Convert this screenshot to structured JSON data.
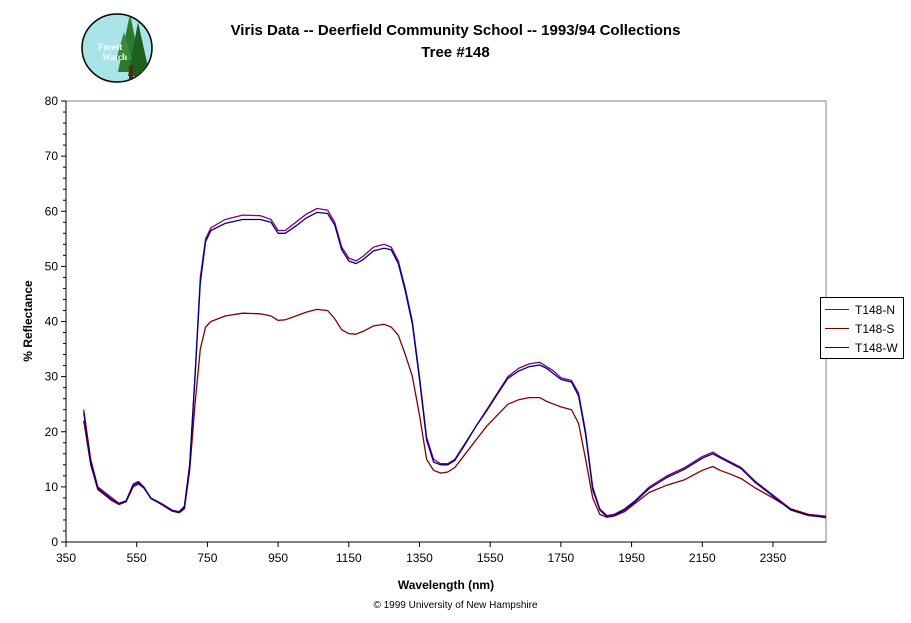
{
  "logo": {
    "text_line1": "Forest",
    "text_line2": "Watch",
    "icon": "forest-watch-logo"
  },
  "footer": {
    "copyright": "© 1999 University of New Hampshire"
  },
  "chart_data": {
    "type": "line",
    "title": "Viris Data -- Deerfield Community School -- 1993/94 Collections",
    "subtitle": "Tree #148",
    "xlabel": "Wavelength (nm)",
    "ylabel": "% Reflectance",
    "xlim": [
      350,
      2500
    ],
    "ylim": [
      0,
      80
    ],
    "xticks": [
      350,
      550,
      750,
      950,
      1150,
      1350,
      1550,
      1750,
      1950,
      2150,
      2350
    ],
    "yticks": [
      0,
      10,
      20,
      30,
      40,
      50,
      60,
      70,
      80
    ],
    "grid": false,
    "legend_position": "right",
    "series": [
      {
        "name": "T148-N",
        "color": "#800080",
        "points": [
          [
            400,
            24
          ],
          [
            420,
            15
          ],
          [
            440,
            10
          ],
          [
            460,
            9
          ],
          [
            480,
            8
          ],
          [
            500,
            7
          ],
          [
            520,
            7.5
          ],
          [
            540,
            10.5
          ],
          [
            555,
            11
          ],
          [
            570,
            10
          ],
          [
            590,
            8
          ],
          [
            620,
            7
          ],
          [
            650,
            5.8
          ],
          [
            670,
            5.5
          ],
          [
            685,
            6.5
          ],
          [
            700,
            14
          ],
          [
            715,
            30
          ],
          [
            730,
            48
          ],
          [
            745,
            55
          ],
          [
            760,
            57
          ],
          [
            800,
            58.5
          ],
          [
            850,
            59.3
          ],
          [
            900,
            59.2
          ],
          [
            930,
            58.5
          ],
          [
            950,
            56.5
          ],
          [
            970,
            56.5
          ],
          [
            1000,
            58
          ],
          [
            1030,
            59.5
          ],
          [
            1060,
            60.5
          ],
          [
            1090,
            60.2
          ],
          [
            1110,
            58
          ],
          [
            1130,
            53.5
          ],
          [
            1150,
            51.5
          ],
          [
            1170,
            51
          ],
          [
            1190,
            51.8
          ],
          [
            1220,
            53.5
          ],
          [
            1250,
            54
          ],
          [
            1270,
            53.5
          ],
          [
            1290,
            51
          ],
          [
            1310,
            46
          ],
          [
            1330,
            40
          ],
          [
            1350,
            30
          ],
          [
            1370,
            19
          ],
          [
            1390,
            15
          ],
          [
            1410,
            14.2
          ],
          [
            1430,
            14.2
          ],
          [
            1450,
            15
          ],
          [
            1480,
            18
          ],
          [
            1510,
            21
          ],
          [
            1540,
            24
          ],
          [
            1570,
            27
          ],
          [
            1600,
            30
          ],
          [
            1630,
            31.5
          ],
          [
            1660,
            32.3
          ],
          [
            1690,
            32.6
          ],
          [
            1710,
            31.8
          ],
          [
            1730,
            31
          ],
          [
            1750,
            29.8
          ],
          [
            1780,
            29.3
          ],
          [
            1800,
            27
          ],
          [
            1820,
            20
          ],
          [
            1840,
            10
          ],
          [
            1860,
            6
          ],
          [
            1880,
            4.8
          ],
          [
            1900,
            5
          ],
          [
            1930,
            6
          ],
          [
            1960,
            7.5
          ],
          [
            2000,
            10
          ],
          [
            2050,
            12
          ],
          [
            2100,
            13.5
          ],
          [
            2150,
            15.5
          ],
          [
            2180,
            16.3
          ],
          [
            2200,
            15.5
          ],
          [
            2230,
            14.5
          ],
          [
            2260,
            13.5
          ],
          [
            2300,
            11
          ],
          [
            2350,
            8.5
          ],
          [
            2400,
            6
          ],
          [
            2450,
            5
          ],
          [
            2480,
            4.8
          ],
          [
            2500,
            4.7
          ]
        ]
      },
      {
        "name": "T148-S",
        "color": "#800000",
        "points": [
          [
            400,
            22
          ],
          [
            420,
            14
          ],
          [
            440,
            9.5
          ],
          [
            460,
            8.5
          ],
          [
            480,
            7.5
          ],
          [
            500,
            6.8
          ],
          [
            520,
            7.3
          ],
          [
            540,
            10
          ],
          [
            555,
            10.5
          ],
          [
            570,
            9.8
          ],
          [
            590,
            8
          ],
          [
            620,
            6.8
          ],
          [
            650,
            5.6
          ],
          [
            670,
            5.3
          ],
          [
            685,
            6
          ],
          [
            700,
            13
          ],
          [
            715,
            25
          ],
          [
            730,
            35
          ],
          [
            745,
            39
          ],
          [
            760,
            40
          ],
          [
            800,
            41
          ],
          [
            850,
            41.5
          ],
          [
            900,
            41.4
          ],
          [
            930,
            41
          ],
          [
            950,
            40.2
          ],
          [
            970,
            40.3
          ],
          [
            1000,
            41
          ],
          [
            1030,
            41.7
          ],
          [
            1060,
            42.2
          ],
          [
            1090,
            42
          ],
          [
            1110,
            40.5
          ],
          [
            1130,
            38.5
          ],
          [
            1150,
            37.8
          ],
          [
            1170,
            37.7
          ],
          [
            1190,
            38.2
          ],
          [
            1220,
            39.2
          ],
          [
            1250,
            39.5
          ],
          [
            1270,
            39
          ],
          [
            1290,
            37.5
          ],
          [
            1310,
            34
          ],
          [
            1330,
            30
          ],
          [
            1350,
            23
          ],
          [
            1370,
            15
          ],
          [
            1390,
            13
          ],
          [
            1410,
            12.5
          ],
          [
            1430,
            12.7
          ],
          [
            1450,
            13.5
          ],
          [
            1480,
            16
          ],
          [
            1510,
            18.5
          ],
          [
            1540,
            21
          ],
          [
            1570,
            23
          ],
          [
            1600,
            25
          ],
          [
            1630,
            25.8
          ],
          [
            1660,
            26.2
          ],
          [
            1690,
            26.2
          ],
          [
            1710,
            25.5
          ],
          [
            1730,
            25
          ],
          [
            1750,
            24.5
          ],
          [
            1780,
            24
          ],
          [
            1800,
            21.5
          ],
          [
            1820,
            15
          ],
          [
            1840,
            8
          ],
          [
            1860,
            5
          ],
          [
            1880,
            4.5
          ],
          [
            1900,
            4.7
          ],
          [
            1930,
            5.5
          ],
          [
            1960,
            7
          ],
          [
            2000,
            9
          ],
          [
            2050,
            10.3
          ],
          [
            2100,
            11.3
          ],
          [
            2150,
            13
          ],
          [
            2180,
            13.7
          ],
          [
            2200,
            13
          ],
          [
            2230,
            12.3
          ],
          [
            2260,
            11.5
          ],
          [
            2300,
            9.8
          ],
          [
            2350,
            8
          ],
          [
            2400,
            6
          ],
          [
            2450,
            5
          ],
          [
            2480,
            4.8
          ],
          [
            2500,
            4.5
          ]
        ]
      },
      {
        "name": "T148-W",
        "color": "#000080",
        "points": [
          [
            400,
            23.5
          ],
          [
            420,
            14.5
          ],
          [
            440,
            9.8
          ],
          [
            460,
            8.7
          ],
          [
            480,
            7.7
          ],
          [
            500,
            7
          ],
          [
            520,
            7.4
          ],
          [
            540,
            10.3
          ],
          [
            555,
            10.8
          ],
          [
            570,
            9.9
          ],
          [
            590,
            7.9
          ],
          [
            620,
            6.9
          ],
          [
            650,
            5.7
          ],
          [
            670,
            5.4
          ],
          [
            685,
            6.3
          ],
          [
            700,
            14
          ],
          [
            715,
            30
          ],
          [
            730,
            47
          ],
          [
            745,
            54.5
          ],
          [
            760,
            56.5
          ],
          [
            800,
            57.8
          ],
          [
            850,
            58.5
          ],
          [
            900,
            58.5
          ],
          [
            930,
            58
          ],
          [
            950,
            56
          ],
          [
            970,
            56
          ],
          [
            1000,
            57.3
          ],
          [
            1030,
            58.8
          ],
          [
            1060,
            59.8
          ],
          [
            1090,
            59.6
          ],
          [
            1110,
            57.5
          ],
          [
            1130,
            53
          ],
          [
            1150,
            51
          ],
          [
            1170,
            50.5
          ],
          [
            1190,
            51.2
          ],
          [
            1220,
            52.8
          ],
          [
            1250,
            53.3
          ],
          [
            1270,
            53
          ],
          [
            1290,
            50.5
          ],
          [
            1310,
            45.5
          ],
          [
            1330,
            39.5
          ],
          [
            1350,
            29.5
          ],
          [
            1370,
            18.5
          ],
          [
            1390,
            14.5
          ],
          [
            1410,
            14
          ],
          [
            1430,
            14
          ],
          [
            1450,
            14.8
          ],
          [
            1480,
            17.8
          ],
          [
            1510,
            21
          ],
          [
            1540,
            23.8
          ],
          [
            1570,
            26.8
          ],
          [
            1600,
            29.7
          ],
          [
            1630,
            31
          ],
          [
            1660,
            31.8
          ],
          [
            1690,
            32.1
          ],
          [
            1710,
            31.5
          ],
          [
            1730,
            30.5
          ],
          [
            1750,
            29.5
          ],
          [
            1780,
            29
          ],
          [
            1800,
            26.5
          ],
          [
            1820,
            19.5
          ],
          [
            1840,
            9.5
          ],
          [
            1860,
            5.8
          ],
          [
            1880,
            4.6
          ],
          [
            1900,
            4.8
          ],
          [
            1930,
            5.8
          ],
          [
            1960,
            7.3
          ],
          [
            2000,
            9.7
          ],
          [
            2050,
            11.7
          ],
          [
            2100,
            13.2
          ],
          [
            2150,
            15.2
          ],
          [
            2180,
            16
          ],
          [
            2200,
            15.3
          ],
          [
            2230,
            14.3
          ],
          [
            2260,
            13.3
          ],
          [
            2300,
            10.8
          ],
          [
            2350,
            8.3
          ],
          [
            2400,
            5.8
          ],
          [
            2450,
            4.8
          ],
          [
            2480,
            4.6
          ],
          [
            2500,
            4.4
          ]
        ]
      }
    ]
  }
}
